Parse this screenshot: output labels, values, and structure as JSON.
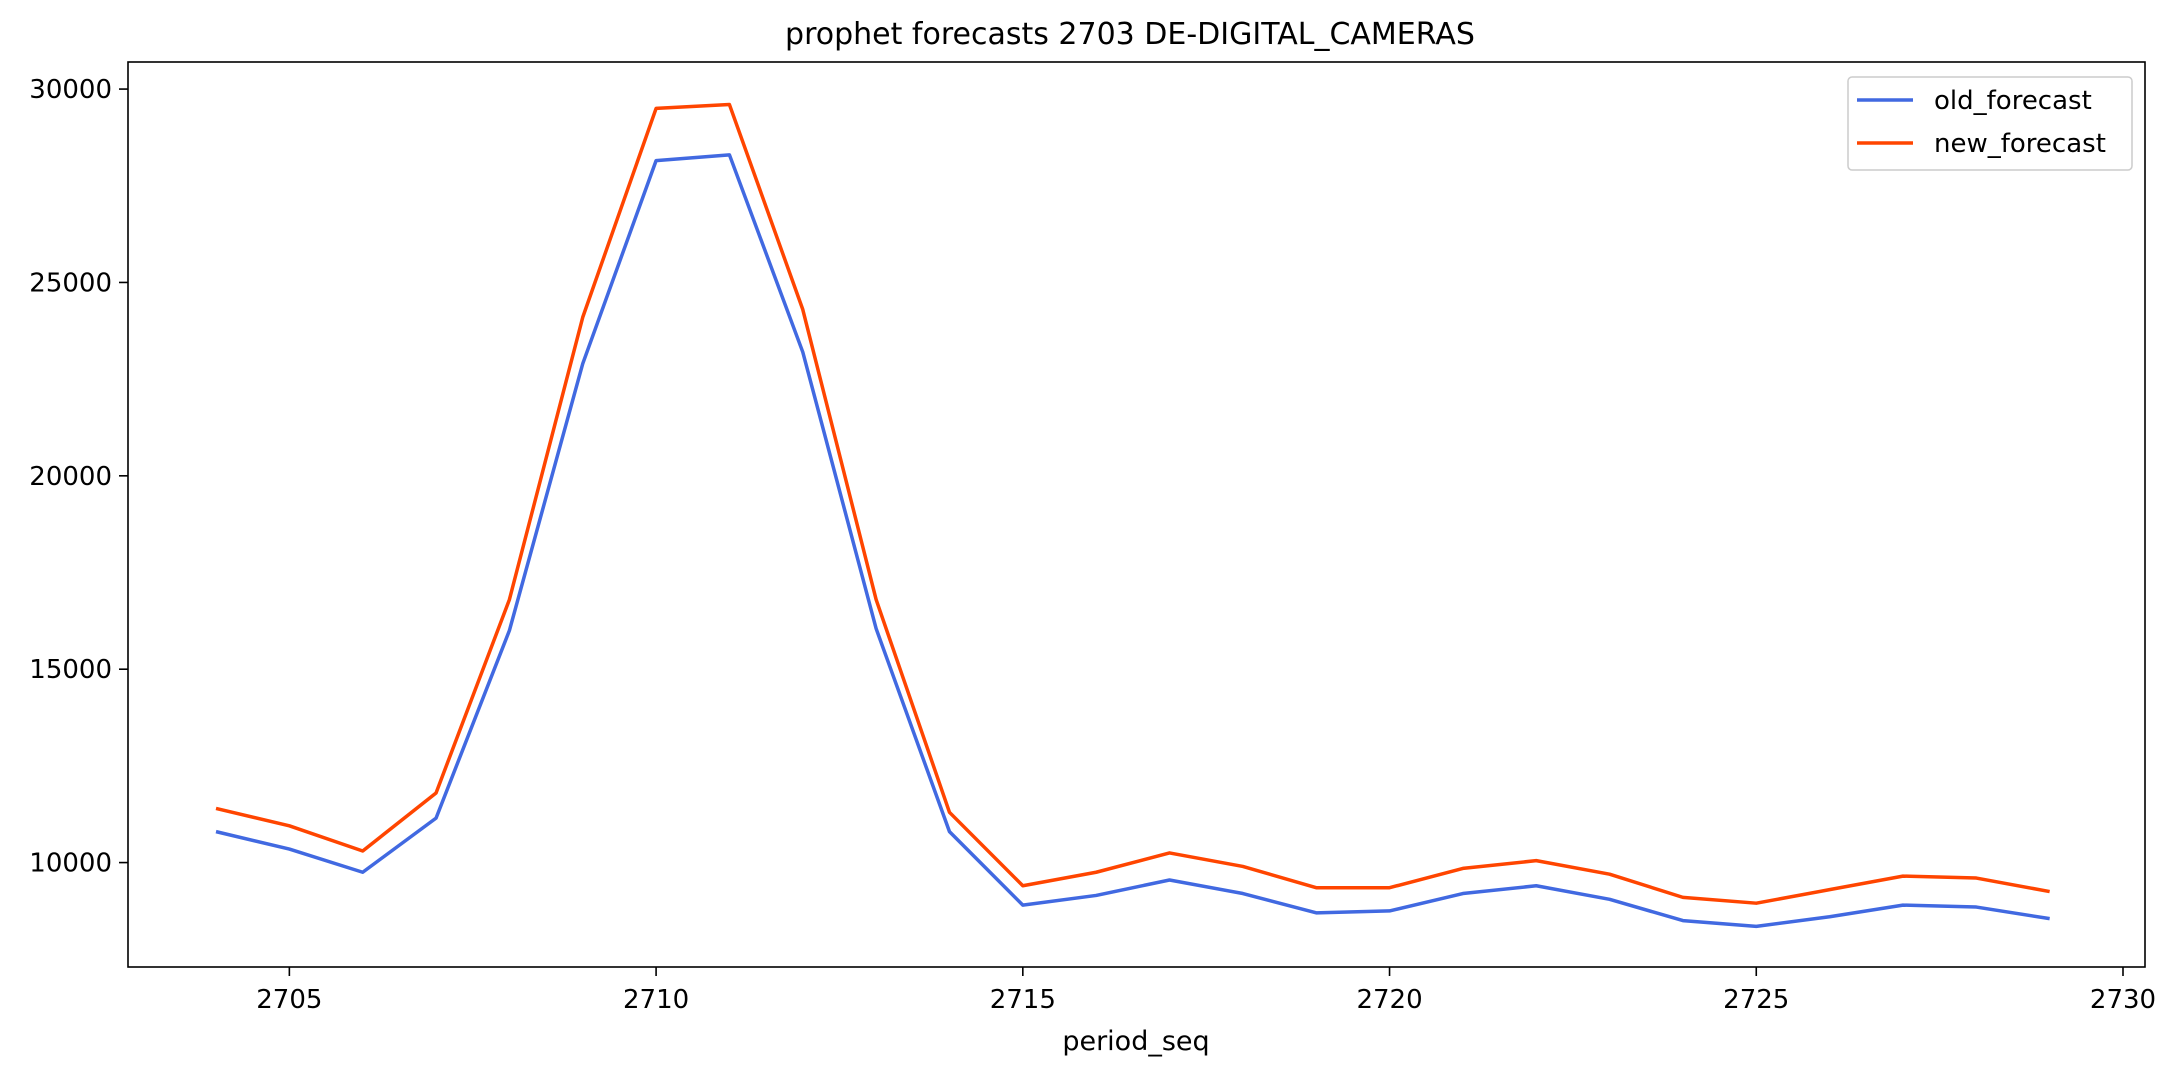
{
  "chart_data": {
    "type": "line",
    "title": "prophet forecasts 2703 DE-DIGITAL_CAMERAS",
    "xlabel": "period_seq",
    "ylabel": "",
    "xlim": [
      2702.8,
      2730.3
    ],
    "ylim": [
      7300,
      30700
    ],
    "xticks": [
      2705,
      2710,
      2715,
      2720,
      2725,
      2730
    ],
    "yticks": [
      10000,
      15000,
      20000,
      25000,
      30000
    ],
    "grid": false,
    "legend_position": "top-right",
    "x": [
      2704,
      2705,
      2706,
      2707,
      2708,
      2709,
      2710,
      2711,
      2712,
      2713,
      2714,
      2715,
      2716,
      2717,
      2718,
      2719,
      2720,
      2721,
      2722,
      2723,
      2724,
      2725,
      2726,
      2727,
      2728,
      2729
    ],
    "series": [
      {
        "name": "old_forecast",
        "color": "#4169e1",
        "values": [
          10800,
          10350,
          9750,
          11150,
          16000,
          22900,
          28150,
          28300,
          23200,
          16050,
          10800,
          8900,
          9150,
          9550,
          9200,
          8700,
          8750,
          9200,
          9400,
          9050,
          8500,
          8350,
          8600,
          8900,
          8850,
          8550
        ]
      },
      {
        "name": "new_forecast",
        "color": "#ff4500",
        "values": [
          11400,
          10950,
          10300,
          11800,
          16800,
          24100,
          29500,
          29600,
          24300,
          16800,
          11300,
          9400,
          9750,
          10250,
          9900,
          9350,
          9350,
          9850,
          10050,
          9700,
          9100,
          8950,
          9300,
          9650,
          9600,
          9250
        ]
      }
    ]
  }
}
